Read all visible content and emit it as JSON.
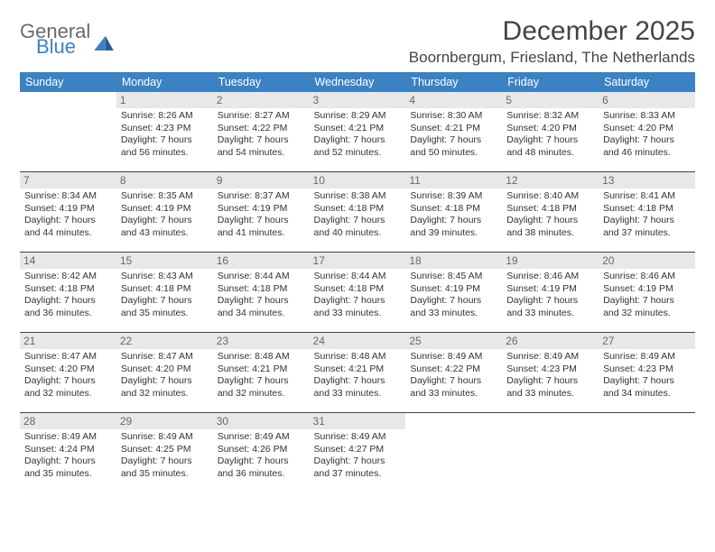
{
  "logo": {
    "line1": "General",
    "line2": "Blue"
  },
  "title": "December 2025",
  "location": "Boornbergum, Friesland, The Netherlands",
  "brand_color": "#3b82c4",
  "header_bg": "#3b82c4",
  "daynum_bg": "#e8e8e8",
  "text_color": "#333333",
  "weekdays": [
    "Sunday",
    "Monday",
    "Tuesday",
    "Wednesday",
    "Thursday",
    "Friday",
    "Saturday"
  ],
  "weeks": [
    [
      null,
      {
        "n": "1",
        "sr": "8:26 AM",
        "ss": "4:23 PM",
        "dl": "7 hours and 56 minutes."
      },
      {
        "n": "2",
        "sr": "8:27 AM",
        "ss": "4:22 PM",
        "dl": "7 hours and 54 minutes."
      },
      {
        "n": "3",
        "sr": "8:29 AM",
        "ss": "4:21 PM",
        "dl": "7 hours and 52 minutes."
      },
      {
        "n": "4",
        "sr": "8:30 AM",
        "ss": "4:21 PM",
        "dl": "7 hours and 50 minutes."
      },
      {
        "n": "5",
        "sr": "8:32 AM",
        "ss": "4:20 PM",
        "dl": "7 hours and 48 minutes."
      },
      {
        "n": "6",
        "sr": "8:33 AM",
        "ss": "4:20 PM",
        "dl": "7 hours and 46 minutes."
      }
    ],
    [
      {
        "n": "7",
        "sr": "8:34 AM",
        "ss": "4:19 PM",
        "dl": "7 hours and 44 minutes."
      },
      {
        "n": "8",
        "sr": "8:35 AM",
        "ss": "4:19 PM",
        "dl": "7 hours and 43 minutes."
      },
      {
        "n": "9",
        "sr": "8:37 AM",
        "ss": "4:19 PM",
        "dl": "7 hours and 41 minutes."
      },
      {
        "n": "10",
        "sr": "8:38 AM",
        "ss": "4:18 PM",
        "dl": "7 hours and 40 minutes."
      },
      {
        "n": "11",
        "sr": "8:39 AM",
        "ss": "4:18 PM",
        "dl": "7 hours and 39 minutes."
      },
      {
        "n": "12",
        "sr": "8:40 AM",
        "ss": "4:18 PM",
        "dl": "7 hours and 38 minutes."
      },
      {
        "n": "13",
        "sr": "8:41 AM",
        "ss": "4:18 PM",
        "dl": "7 hours and 37 minutes."
      }
    ],
    [
      {
        "n": "14",
        "sr": "8:42 AM",
        "ss": "4:18 PM",
        "dl": "7 hours and 36 minutes."
      },
      {
        "n": "15",
        "sr": "8:43 AM",
        "ss": "4:18 PM",
        "dl": "7 hours and 35 minutes."
      },
      {
        "n": "16",
        "sr": "8:44 AM",
        "ss": "4:18 PM",
        "dl": "7 hours and 34 minutes."
      },
      {
        "n": "17",
        "sr": "8:44 AM",
        "ss": "4:18 PM",
        "dl": "7 hours and 33 minutes."
      },
      {
        "n": "18",
        "sr": "8:45 AM",
        "ss": "4:19 PM",
        "dl": "7 hours and 33 minutes."
      },
      {
        "n": "19",
        "sr": "8:46 AM",
        "ss": "4:19 PM",
        "dl": "7 hours and 33 minutes."
      },
      {
        "n": "20",
        "sr": "8:46 AM",
        "ss": "4:19 PM",
        "dl": "7 hours and 32 minutes."
      }
    ],
    [
      {
        "n": "21",
        "sr": "8:47 AM",
        "ss": "4:20 PM",
        "dl": "7 hours and 32 minutes."
      },
      {
        "n": "22",
        "sr": "8:47 AM",
        "ss": "4:20 PM",
        "dl": "7 hours and 32 minutes."
      },
      {
        "n": "23",
        "sr": "8:48 AM",
        "ss": "4:21 PM",
        "dl": "7 hours and 32 minutes."
      },
      {
        "n": "24",
        "sr": "8:48 AM",
        "ss": "4:21 PM",
        "dl": "7 hours and 33 minutes."
      },
      {
        "n": "25",
        "sr": "8:49 AM",
        "ss": "4:22 PM",
        "dl": "7 hours and 33 minutes."
      },
      {
        "n": "26",
        "sr": "8:49 AM",
        "ss": "4:23 PM",
        "dl": "7 hours and 33 minutes."
      },
      {
        "n": "27",
        "sr": "8:49 AM",
        "ss": "4:23 PM",
        "dl": "7 hours and 34 minutes."
      }
    ],
    [
      {
        "n": "28",
        "sr": "8:49 AM",
        "ss": "4:24 PM",
        "dl": "7 hours and 35 minutes."
      },
      {
        "n": "29",
        "sr": "8:49 AM",
        "ss": "4:25 PM",
        "dl": "7 hours and 35 minutes."
      },
      {
        "n": "30",
        "sr": "8:49 AM",
        "ss": "4:26 PM",
        "dl": "7 hours and 36 minutes."
      },
      {
        "n": "31",
        "sr": "8:49 AM",
        "ss": "4:27 PM",
        "dl": "7 hours and 37 minutes."
      },
      null,
      null,
      null
    ]
  ],
  "labels": {
    "sunrise": "Sunrise: ",
    "sunset": "Sunset: ",
    "daylight": "Daylight: "
  }
}
